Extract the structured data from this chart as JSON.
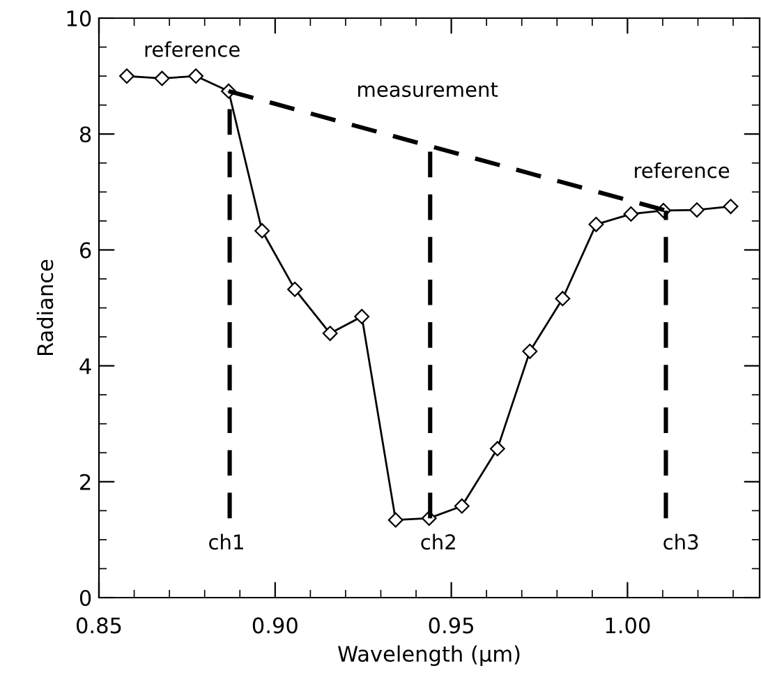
{
  "chart_data": {
    "type": "line",
    "xlabel": "Wavelength (µm)",
    "ylabel": "Radiance",
    "xlim": [
      0.85,
      1.0375
    ],
    "ylim": [
      0,
      10
    ],
    "xticks": [
      0.85,
      {
        "value": 0.9,
        "label": "0.90"
      },
      0.95,
      {
        "value": 1.0,
        "label": "1.00"
      }
    ],
    "yticks": [
      0,
      2,
      4,
      6,
      8,
      10
    ],
    "grid": false,
    "legend": false,
    "series": [
      {
        "color": "#000000",
        "marker": "diamond",
        "line_style": "solid",
        "x": [
          0.8579,
          0.8679,
          0.8775,
          0.8868,
          0.8963,
          0.9056,
          0.9156,
          0.9246,
          0.9342,
          0.9437,
          0.953,
          0.9631,
          0.9723,
          0.9816,
          0.9911,
          1.001,
          1.0102,
          1.0197,
          1.0293
        ],
        "values": [
          9.0,
          8.96,
          9.0,
          8.74,
          6.33,
          5.32,
          4.56,
          4.85,
          1.34,
          1.37,
          1.58,
          2.57,
          4.25,
          5.16,
          6.44,
          6.62,
          6.68,
          6.69,
          6.75
        ]
      },
      {
        "color": "#000000",
        "marker": "none",
        "line_style": "dashed",
        "x": [
          0.8868,
          1.0109
        ],
        "values": [
          8.74,
          6.68
        ]
      },
      {
        "color": "#000000",
        "marker": "none",
        "line_style": "dashed",
        "x": [
          0.8871,
          0.8871
        ],
        "values": [
          1.37,
          8.74
        ]
      },
      {
        "color": "#000000",
        "marker": "none",
        "line_style": "dashed",
        "x": [
          0.944,
          0.944
        ],
        "values": [
          1.37,
          7.75
        ]
      },
      {
        "color": "#000000",
        "marker": "none",
        "line_style": "dashed",
        "x": [
          1.0109,
          1.0109
        ],
        "values": [
          1.37,
          6.68
        ]
      }
    ],
    "annotations": [
      "reference",
      "measurement",
      "reference",
      "ch1",
      "ch2",
      "ch3"
    ]
  }
}
